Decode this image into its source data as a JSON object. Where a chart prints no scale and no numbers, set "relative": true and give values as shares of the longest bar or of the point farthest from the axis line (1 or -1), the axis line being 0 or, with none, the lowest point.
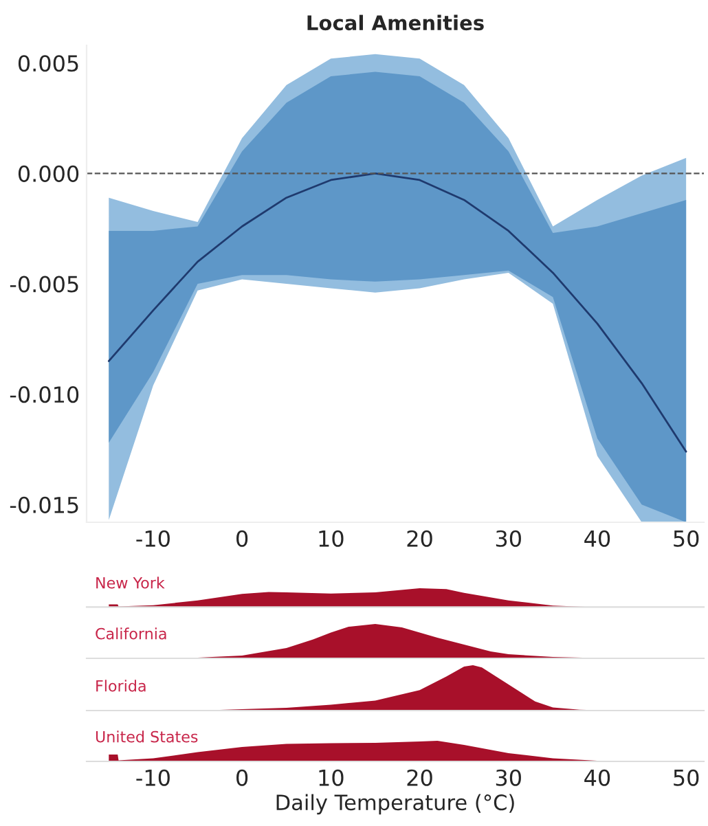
{
  "chart_data": [
    {
      "type": "line",
      "title": "Local Amenities",
      "x": [
        -15,
        -10,
        -5,
        0,
        5,
        10,
        15,
        20,
        25,
        30,
        35,
        40,
        45,
        50
      ],
      "series": [
        {
          "type": "area",
          "color": "#93bddf",
          "values": [
            null,
            null,
            null,
            null,
            null,
            null,
            null,
            null,
            null,
            null,
            null,
            null,
            null,
            null
          ],
          "lower": [
            -0.0157,
            -0.0096,
            -0.0053,
            -0.0048,
            -0.005,
            -0.0052,
            -0.0054,
            -0.0052,
            -0.0048,
            -0.0045,
            -0.0059,
            -0.0128,
            -0.0158,
            -0.0158
          ],
          "upper": [
            -0.0011,
            -0.0017,
            -0.0022,
            0.0016,
            0.004,
            0.0052,
            0.0054,
            0.0052,
            0.004,
            0.0016,
            -0.0024,
            -0.0012,
            -0.0001,
            0.0007
          ]
        },
        {
          "type": "area",
          "color": "#5e97c8",
          "values": [
            null,
            null,
            null,
            null,
            null,
            null,
            null,
            null,
            null,
            null,
            null,
            null,
            null,
            null
          ],
          "lower": [
            -0.0122,
            -0.009,
            -0.005,
            -0.0046,
            -0.0046,
            -0.0048,
            -0.0049,
            -0.0048,
            -0.0046,
            -0.0044,
            -0.0056,
            -0.012,
            -0.015,
            -0.0158
          ],
          "upper": [
            -0.0026,
            -0.0026,
            -0.0024,
            0.001,
            0.0032,
            0.0044,
            0.0046,
            0.0044,
            0.0032,
            0.001,
            -0.0027,
            -0.0024,
            -0.0018,
            -0.0012
          ]
        },
        {
          "type": "line",
          "color": "#1f3a6e",
          "values": [
            -0.0085,
            -0.0062,
            -0.004,
            -0.0024,
            -0.0011,
            -0.0003,
            0.0,
            -0.0003,
            -0.0012,
            -0.0026,
            -0.0045,
            -0.0068,
            -0.0095,
            -0.0126
          ]
        }
      ],
      "xlim": [
        -17.5,
        52
      ],
      "xticks": [
        -10,
        0,
        10,
        20,
        30,
        40,
        50
      ],
      "ylim": [
        -0.0158,
        0.0058
      ],
      "yticks": [
        {
          "value": -0.015,
          "label": "-0.015"
        },
        {
          "value": -0.01,
          "label": "-0.010"
        },
        {
          "value": -0.005,
          "label": "-0.005"
        },
        {
          "value": 0,
          "label": "0.000"
        },
        {
          "value": 0.005,
          "label": "0.005"
        }
      ],
      "ref_lines": [
        {
          "axis": "y",
          "value": 0,
          "color": "#555555",
          "line_style": "dashed"
        }
      ],
      "grid": false
    },
    {
      "type": "area",
      "title": "New York",
      "relative": true,
      "tick_labels": false,
      "x": [
        -15,
        -14,
        -13.9,
        -10,
        -5,
        0,
        3,
        5,
        10,
        15,
        20,
        23,
        25,
        30,
        35,
        38,
        40,
        50
      ],
      "series": [
        {
          "color": "#a8102a",
          "values": [
            0.14,
            0.14,
            0.03,
            0.1,
            0.35,
            0.7,
            0.8,
            0.78,
            0.72,
            0.78,
            1.0,
            0.95,
            0.75,
            0.35,
            0.08,
            0.02,
            0,
            0
          ]
        }
      ],
      "xlim": [
        -17.5,
        52
      ],
      "xticks": [
        -10,
        0,
        10,
        20,
        30,
        40,
        50
      ]
    },
    {
      "type": "area",
      "title": "California",
      "relative": true,
      "tick_labels": false,
      "x": [
        -15,
        -10,
        -5,
        0,
        5,
        8,
        10,
        12,
        15,
        18,
        20,
        22,
        25,
        28,
        30,
        35,
        40,
        45,
        50
      ],
      "series": [
        {
          "color": "#a8102a",
          "values": [
            0,
            0,
            0.02,
            0.08,
            0.3,
            0.55,
            0.75,
            0.92,
            1.0,
            0.9,
            0.75,
            0.6,
            0.4,
            0.2,
            0.12,
            0.04,
            0.01,
            0,
            0
          ]
        }
      ],
      "xlim": [
        -17.5,
        52
      ],
      "xticks": [
        -10,
        0,
        10,
        20,
        30,
        40,
        50
      ]
    },
    {
      "type": "area",
      "title": "Florida",
      "relative": true,
      "tick_labels": false,
      "x": [
        -15,
        -5,
        0,
        5,
        10,
        15,
        20,
        23,
        25,
        26,
        27,
        29,
        31,
        33,
        35,
        38,
        42,
        50
      ],
      "series": [
        {
          "color": "#a8102a",
          "values": [
            0,
            0,
            0.03,
            0.06,
            0.13,
            0.22,
            0.45,
            0.75,
            0.97,
            1.0,
            0.95,
            0.7,
            0.45,
            0.2,
            0.07,
            0.02,
            0,
            0
          ]
        }
      ],
      "xlim": [
        -17.5,
        52
      ],
      "xticks": [
        -10,
        0,
        10,
        20,
        30,
        40,
        50
      ]
    },
    {
      "type": "area",
      "title": "United States",
      "relative": true,
      "tick_labels": "x",
      "xlabel": "Daily Temperature (°C)",
      "x": [
        -15,
        -14,
        -13.9,
        -10,
        -5,
        0,
        5,
        10,
        15,
        20,
        22,
        25,
        30,
        35,
        40,
        45,
        50
      ],
      "series": [
        {
          "color": "#a8102a",
          "values": [
            0.33,
            0.33,
            0.05,
            0.15,
            0.45,
            0.7,
            0.85,
            0.88,
            0.9,
            0.97,
            1.0,
            0.8,
            0.4,
            0.15,
            0.03,
            0,
            0
          ]
        }
      ],
      "xlim": [
        -17.5,
        52
      ],
      "xticks": [
        -10,
        0,
        10,
        20,
        30,
        40,
        50
      ]
    }
  ]
}
